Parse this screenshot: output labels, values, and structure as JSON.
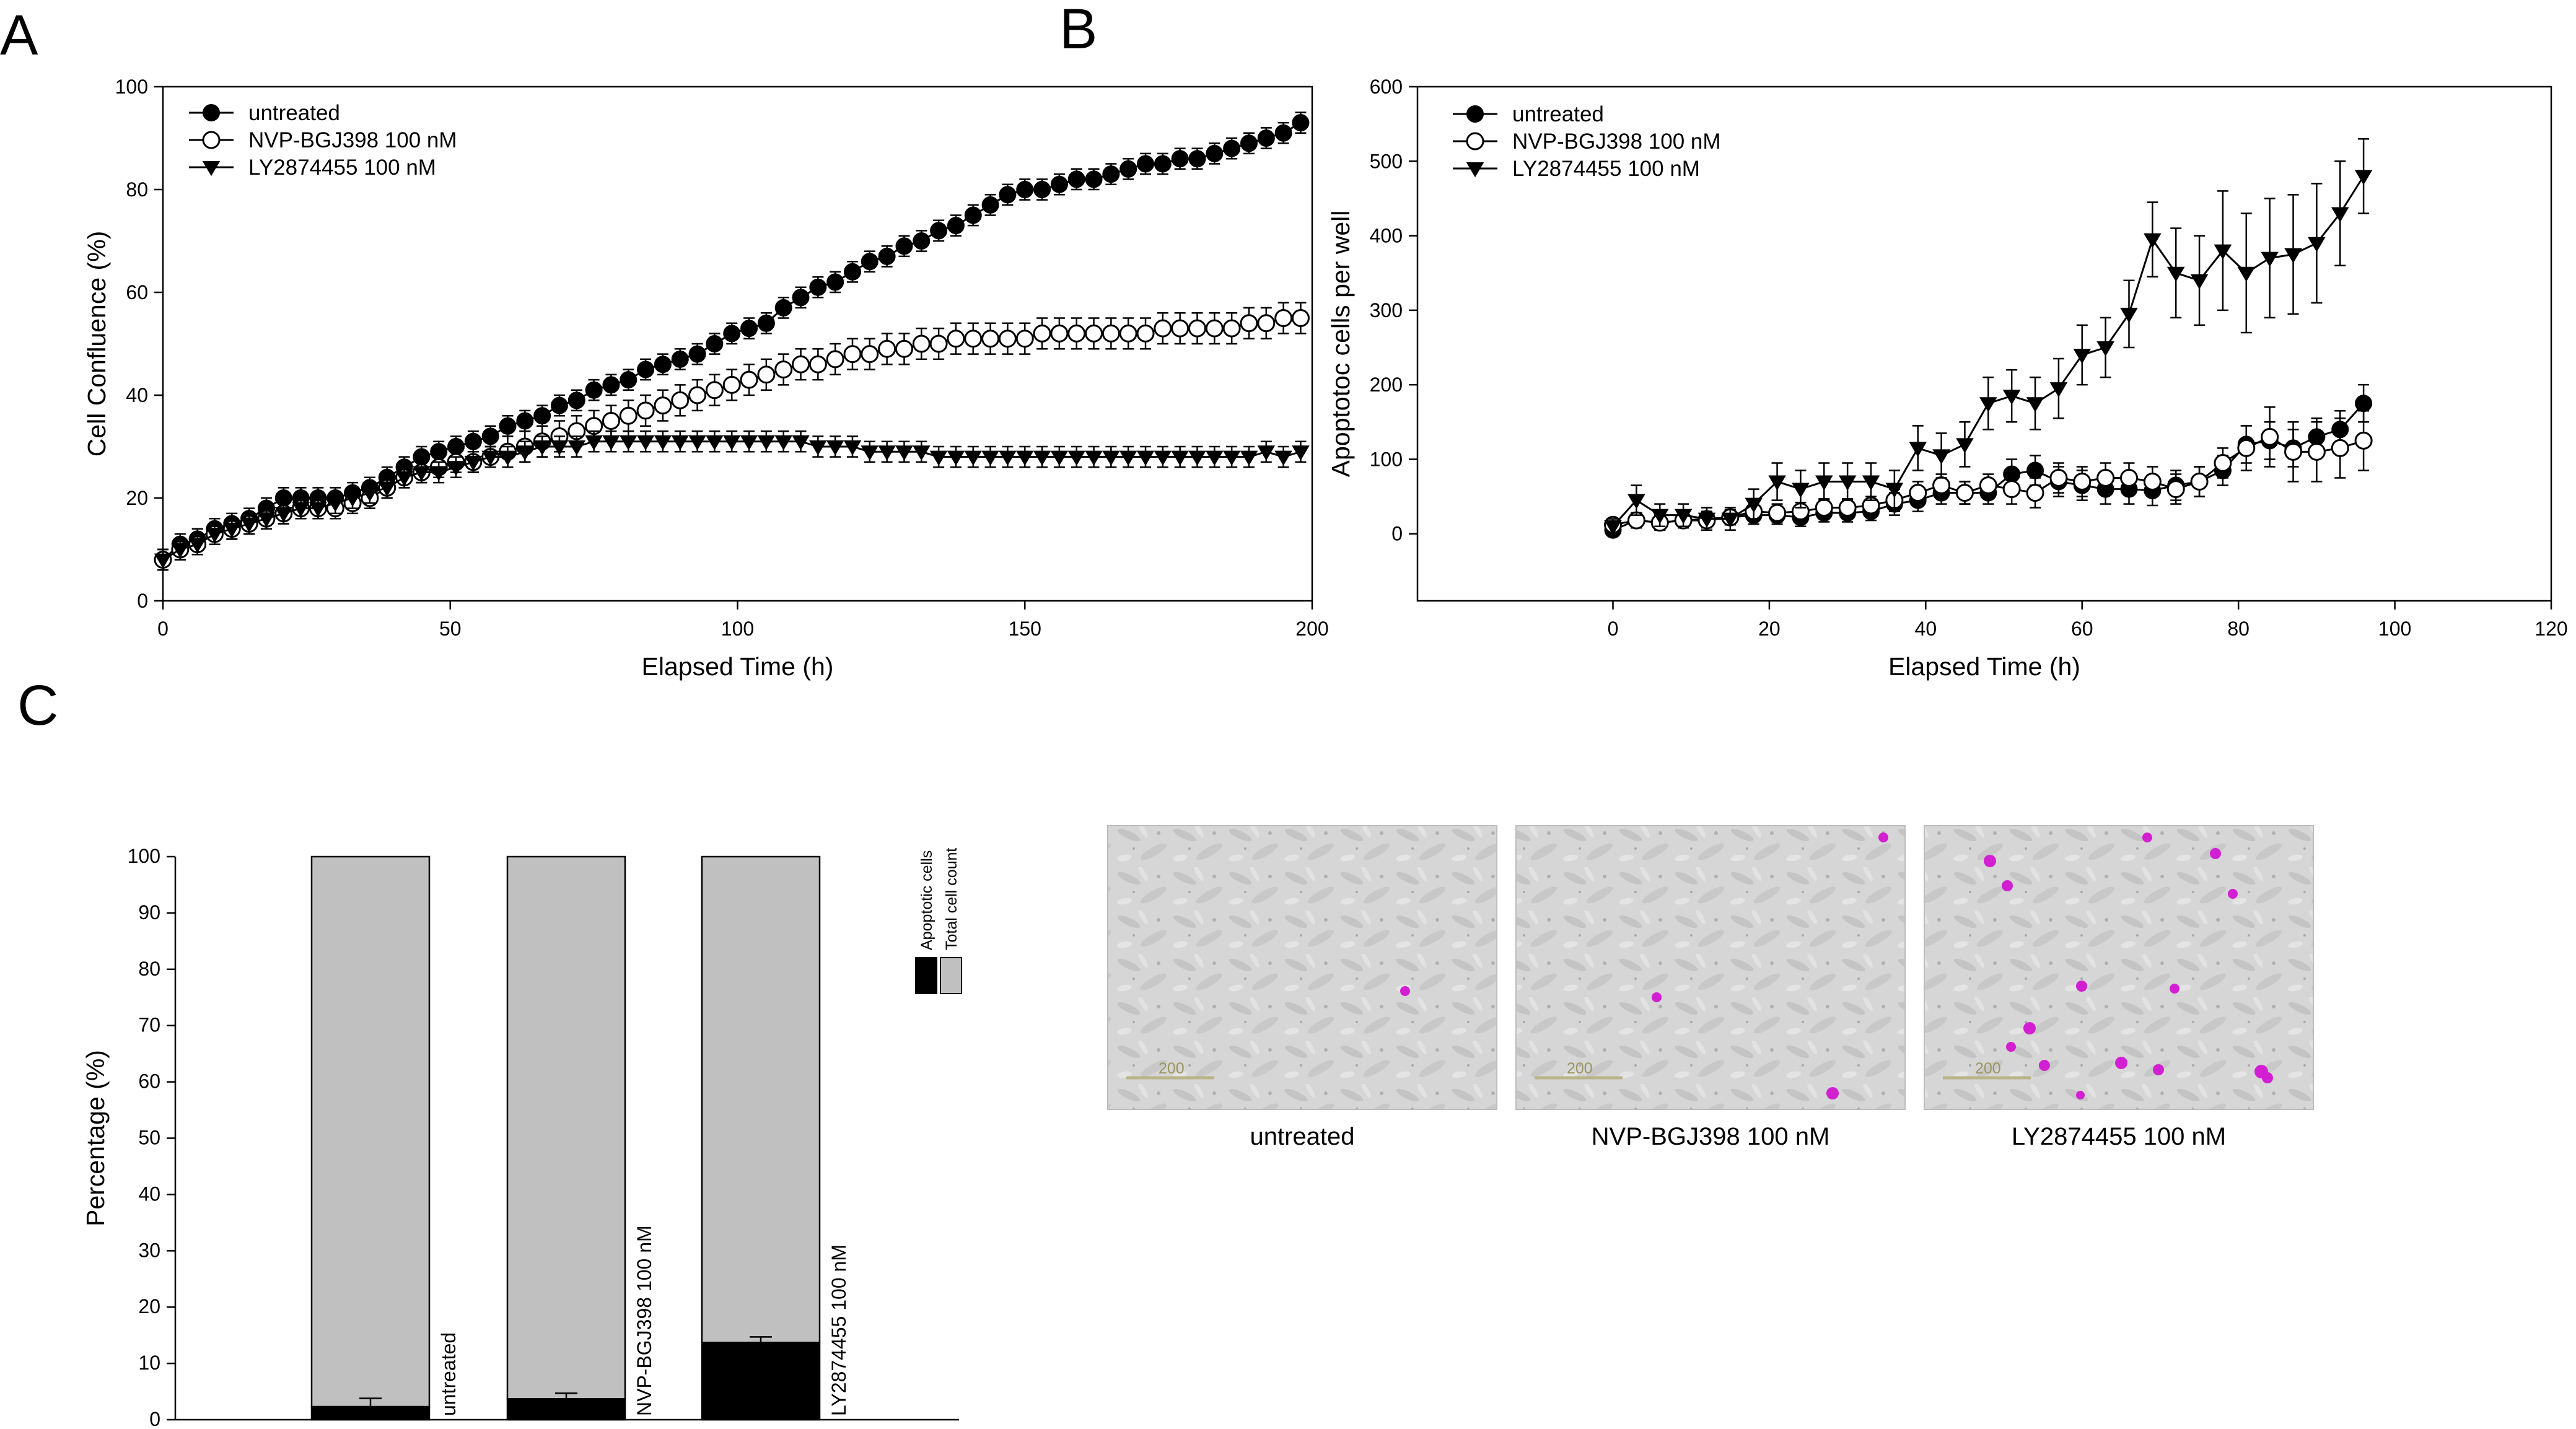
{
  "panels": {
    "a": "A",
    "b": "B",
    "c": "C"
  },
  "chart_data": [
    {
      "panel": "A",
      "type": "line",
      "xlabel": "Elapsed Time (h)",
      "ylabel": "Cell Confluence (%)",
      "xlim": [
        0,
        200
      ],
      "ylim": [
        0,
        100
      ],
      "xticks": [
        0,
        50,
        100,
        150,
        200
      ],
      "yticks": [
        0,
        20,
        40,
        60,
        80,
        100
      ],
      "legend_position": "top-left",
      "series": [
        {
          "name": "untreated",
          "marker": "filled-circle",
          "x": [
            0,
            3,
            6,
            9,
            12,
            15,
            18,
            21,
            24,
            27,
            30,
            33,
            36,
            39,
            42,
            45,
            48,
            51,
            54,
            57,
            60,
            63,
            66,
            69,
            72,
            75,
            78,
            81,
            84,
            87,
            90,
            93,
            96,
            99,
            102,
            105,
            108,
            111,
            114,
            117,
            120,
            123,
            126,
            129,
            132,
            135,
            138,
            141,
            144,
            147,
            150,
            153,
            156,
            159,
            162,
            165,
            168,
            171,
            174,
            177,
            180,
            183,
            186,
            189,
            192,
            195,
            198
          ],
          "y": [
            8,
            11,
            12,
            14,
            15,
            16,
            18,
            20,
            20,
            20,
            20,
            21,
            22,
            24,
            26,
            28,
            29,
            30,
            31,
            32,
            34,
            35,
            36,
            38,
            39,
            41,
            42,
            43,
            45,
            46,
            47,
            48,
            50,
            52,
            53,
            54,
            57,
            59,
            61,
            62,
            64,
            66,
            67,
            69,
            70,
            72,
            73,
            75,
            77,
            79,
            80,
            80,
            81,
            82,
            82,
            83,
            84,
            85,
            85,
            86,
            86,
            87,
            88,
            89,
            90,
            91,
            93
          ],
          "err": [
            2,
            2,
            2,
            2,
            2,
            2,
            2,
            2,
            2,
            2,
            2,
            2,
            2,
            2,
            2,
            2,
            2,
            2,
            2,
            2,
            2,
            2,
            2,
            2,
            2,
            2,
            2,
            2,
            2,
            2,
            2,
            2,
            2,
            2,
            2,
            2,
            2,
            2,
            2,
            2,
            2,
            2,
            2,
            2,
            2,
            2,
            2,
            2,
            2,
            2,
            2,
            2,
            2,
            2,
            2,
            2,
            2,
            2,
            2,
            2,
            2,
            2,
            2,
            2,
            2,
            2,
            2
          ]
        },
        {
          "name": "NVP-BGJ398 100 nM",
          "marker": "open-circle",
          "x": [
            0,
            3,
            6,
            9,
            12,
            15,
            18,
            21,
            24,
            27,
            30,
            33,
            36,
            39,
            42,
            45,
            48,
            51,
            54,
            57,
            60,
            63,
            66,
            69,
            72,
            75,
            78,
            81,
            84,
            87,
            90,
            93,
            96,
            99,
            102,
            105,
            108,
            111,
            114,
            117,
            120,
            123,
            126,
            129,
            132,
            135,
            138,
            141,
            144,
            147,
            150,
            153,
            156,
            159,
            162,
            165,
            168,
            171,
            174,
            177,
            180,
            183,
            186,
            189,
            192,
            195,
            198
          ],
          "y": [
            8,
            10,
            11,
            13,
            14,
            15,
            16,
            17,
            18,
            18,
            18,
            19,
            20,
            22,
            24,
            25,
            26,
            27,
            27,
            28,
            29,
            30,
            31,
            32,
            33,
            34,
            35,
            36,
            37,
            38,
            39,
            40,
            41,
            42,
            43,
            44,
            45,
            46,
            46,
            47,
            48,
            48,
            49,
            49,
            50,
            50,
            51,
            51,
            51,
            51,
            51,
            52,
            52,
            52,
            52,
            52,
            52,
            52,
            53,
            53,
            53,
            53,
            53,
            54,
            54,
            55,
            55
          ],
          "err": [
            2,
            2,
            2,
            2,
            2,
            2,
            2,
            2,
            2,
            2,
            2,
            2,
            2,
            2,
            2,
            2,
            2,
            2,
            2,
            2,
            3,
            3,
            3,
            3,
            3,
            3,
            3,
            3,
            3,
            3,
            3,
            3,
            3,
            3,
            3,
            3,
            3,
            3,
            3,
            3,
            3,
            3,
            3,
            3,
            3,
            3,
            3,
            3,
            3,
            3,
            3,
            3,
            3,
            3,
            3,
            3,
            3,
            3,
            3,
            3,
            3,
            3,
            3,
            3,
            3,
            3,
            3
          ]
        },
        {
          "name": "LY2874455 100 nM",
          "marker": "filled-triangle-down",
          "x": [
            0,
            3,
            6,
            9,
            12,
            15,
            18,
            21,
            24,
            27,
            30,
            33,
            36,
            39,
            42,
            45,
            48,
            51,
            54,
            57,
            60,
            63,
            66,
            69,
            72,
            75,
            78,
            81,
            84,
            87,
            90,
            93,
            96,
            99,
            102,
            105,
            108,
            111,
            114,
            117,
            120,
            123,
            126,
            129,
            132,
            135,
            138,
            141,
            144,
            147,
            150,
            153,
            156,
            159,
            162,
            165,
            168,
            171,
            174,
            177,
            180,
            183,
            186,
            189,
            192,
            195,
            198
          ],
          "y": [
            8,
            10,
            11,
            13,
            14,
            15,
            16,
            17,
            18,
            18,
            19,
            20,
            21,
            22,
            24,
            25,
            25,
            26,
            27,
            28,
            28,
            29,
            30,
            30,
            30,
            31,
            31,
            31,
            31,
            31,
            31,
            31,
            31,
            31,
            31,
            31,
            31,
            31,
            30,
            30,
            30,
            29,
            29,
            29,
            29,
            28,
            28,
            28,
            28,
            28,
            28,
            28,
            28,
            28,
            28,
            28,
            28,
            28,
            28,
            28,
            28,
            28,
            28,
            28,
            29,
            28,
            29
          ],
          "err": [
            2,
            2,
            2,
            2,
            2,
            2,
            2,
            2,
            2,
            2,
            2,
            2,
            2,
            2,
            2,
            2,
            2,
            2,
            2,
            2,
            2,
            2,
            2,
            2,
            2,
            2,
            2,
            2,
            2,
            2,
            2,
            2,
            2,
            2,
            2,
            2,
            2,
            2,
            2,
            2,
            2,
            2,
            2,
            2,
            2,
            2,
            2,
            2,
            2,
            2,
            2,
            2,
            2,
            2,
            2,
            2,
            2,
            2,
            2,
            2,
            2,
            2,
            2,
            2,
            2,
            2,
            2
          ]
        }
      ]
    },
    {
      "panel": "B",
      "type": "line",
      "xlabel": "Elapsed Time (h)",
      "ylabel": "Apoptotoc cells per well",
      "xlim": [
        -25,
        120
      ],
      "ylim": [
        -90,
        600
      ],
      "xticks": [
        0,
        20,
        40,
        60,
        80,
        100,
        120
      ],
      "yticks": [
        0,
        100,
        200,
        300,
        400,
        500,
        600
      ],
      "legend_position": "top-left",
      "series": [
        {
          "name": "untreated",
          "marker": "filled-circle",
          "x": [
            0,
            3,
            6,
            9,
            12,
            15,
            18,
            21,
            24,
            27,
            30,
            33,
            36,
            39,
            42,
            45,
            48,
            51,
            54,
            57,
            60,
            63,
            66,
            69,
            72,
            75,
            78,
            81,
            84,
            87,
            90,
            93,
            96
          ],
          "y": [
            5,
            18,
            15,
            18,
            20,
            22,
            25,
            25,
            22,
            28,
            28,
            30,
            40,
            45,
            55,
            55,
            55,
            80,
            85,
            70,
            65,
            60,
            60,
            58,
            65,
            70,
            85,
            120,
            125,
            115,
            130,
            140,
            175
          ],
          "err": [
            8,
            10,
            10,
            10,
            10,
            10,
            12,
            12,
            12,
            12,
            12,
            12,
            15,
            15,
            15,
            15,
            15,
            20,
            20,
            20,
            20,
            20,
            20,
            20,
            20,
            20,
            20,
            25,
            25,
            25,
            25,
            25,
            25
          ]
        },
        {
          "name": "NVP-BGJ398 100 nM",
          "marker": "open-circle",
          "x": [
            0,
            3,
            6,
            9,
            12,
            15,
            18,
            21,
            24,
            27,
            30,
            33,
            36,
            39,
            42,
            45,
            48,
            51,
            54,
            57,
            60,
            63,
            66,
            69,
            72,
            75,
            78,
            81,
            84,
            87,
            90,
            93,
            96
          ],
          "y": [
            12,
            18,
            15,
            18,
            18,
            22,
            30,
            28,
            30,
            35,
            35,
            38,
            45,
            55,
            65,
            55,
            65,
            60,
            55,
            75,
            70,
            75,
            75,
            70,
            60,
            70,
            95,
            115,
            130,
            110,
            110,
            115,
            125
          ],
          "err": [
            8,
            10,
            10,
            10,
            10,
            10,
            12,
            12,
            12,
            12,
            12,
            12,
            15,
            15,
            15,
            15,
            15,
            20,
            20,
            20,
            20,
            20,
            20,
            20,
            20,
            20,
            20,
            30,
            40,
            40,
            40,
            40,
            40
          ]
        },
        {
          "name": "LY2874455 100 nM",
          "marker": "filled-triangle-down",
          "x": [
            0,
            3,
            6,
            9,
            12,
            15,
            18,
            21,
            24,
            27,
            30,
            33,
            36,
            39,
            42,
            45,
            48,
            51,
            54,
            57,
            60,
            63,
            66,
            69,
            72,
            75,
            78,
            81,
            84,
            87,
            90,
            93,
            96
          ],
          "y": [
            10,
            45,
            25,
            25,
            20,
            20,
            40,
            70,
            60,
            70,
            70,
            70,
            60,
            115,
            105,
            120,
            175,
            185,
            175,
            195,
            240,
            250,
            295,
            395,
            350,
            340,
            380,
            350,
            370,
            375,
            390,
            430,
            480
          ],
          "err": [
            10,
            20,
            15,
            15,
            15,
            15,
            20,
            25,
            25,
            25,
            25,
            25,
            25,
            30,
            30,
            30,
            35,
            35,
            35,
            40,
            40,
            40,
            45,
            50,
            60,
            60,
            80,
            80,
            80,
            80,
            80,
            70,
            50
          ]
        }
      ]
    },
    {
      "panel": "C",
      "type": "bar",
      "stacked": true,
      "ylabel": "Percentage (%)",
      "ylim": [
        0,
        100
      ],
      "yticks": [
        0,
        10,
        20,
        30,
        40,
        50,
        60,
        70,
        80,
        90,
        100
      ],
      "categories": [
        "untreated",
        "NVP-BGJ398 100 nM",
        "LY2874455 100  nM"
      ],
      "series": [
        {
          "name": "Apoptotic cells",
          "color": "#000000",
          "values": [
            2.3,
            3.7,
            13.7
          ],
          "err": [
            1.5,
            1.0,
            1.0
          ]
        },
        {
          "name": "Total cell count",
          "color": "#c0c0c0",
          "values": [
            97.7,
            96.3,
            86.3
          ]
        }
      ],
      "legend_position": "top-right"
    }
  ],
  "micrographs": [
    {
      "caption": "untreated",
      "scale_text": "200"
    },
    {
      "caption": "NVP-BGJ398 100 nM",
      "scale_text": "200"
    },
    {
      "caption": "LY2874455 100 nM",
      "scale_text": "200"
    }
  ],
  "colors": {
    "bar_fill": "#c0c0c0",
    "apoptotic": "#000000",
    "stain": "#d21fd2"
  }
}
